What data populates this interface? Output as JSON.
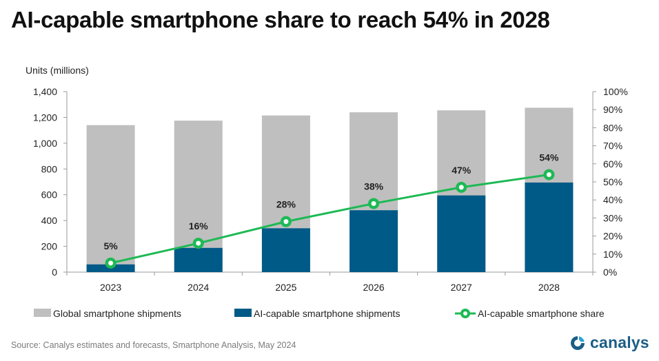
{
  "title": "AI-capable smartphone share to reach 54% in 2028",
  "source": "Source:  Canalys estimates and forecasts, Smartphone  Analysis, May 2024",
  "brand": "canalys",
  "colors": {
    "global": "#bfbfbf",
    "ai": "#005a87",
    "share": "#1db954",
    "axis": "#999999",
    "brand": "#1b5e86"
  },
  "chart_data": {
    "type": "bar",
    "categories": [
      "2023",
      "2024",
      "2025",
      "2026",
      "2027",
      "2028"
    ],
    "ylabel": "Units (millions)",
    "ylim": [
      0,
      1400
    ],
    "yticks": [
      "0",
      "200",
      "400",
      "600",
      "800",
      "1,000",
      "1,200",
      "1,400"
    ],
    "y2lim": [
      0,
      100
    ],
    "y2ticks": [
      "0%",
      "10%",
      "20%",
      "30%",
      "40%",
      "50%",
      "60%",
      "70%",
      "80%",
      "90%",
      "100%"
    ],
    "grid": false,
    "legend_position": "bottom",
    "series": [
      {
        "name": "Global smartphone shipments",
        "type": "bar",
        "values": [
          1140,
          1175,
          1215,
          1240,
          1255,
          1275
        ]
      },
      {
        "name": "AI-capable smartphone shipments",
        "type": "bar",
        "values": [
          60,
          188,
          340,
          480,
          595,
          695
        ]
      },
      {
        "name": "AI-capable smartphone share",
        "type": "line",
        "axis": "right",
        "values": [
          5,
          16,
          28,
          38,
          47,
          54
        ],
        "labels": [
          "5%",
          "16%",
          "28%",
          "38%",
          "47%",
          "54%"
        ]
      }
    ]
  }
}
